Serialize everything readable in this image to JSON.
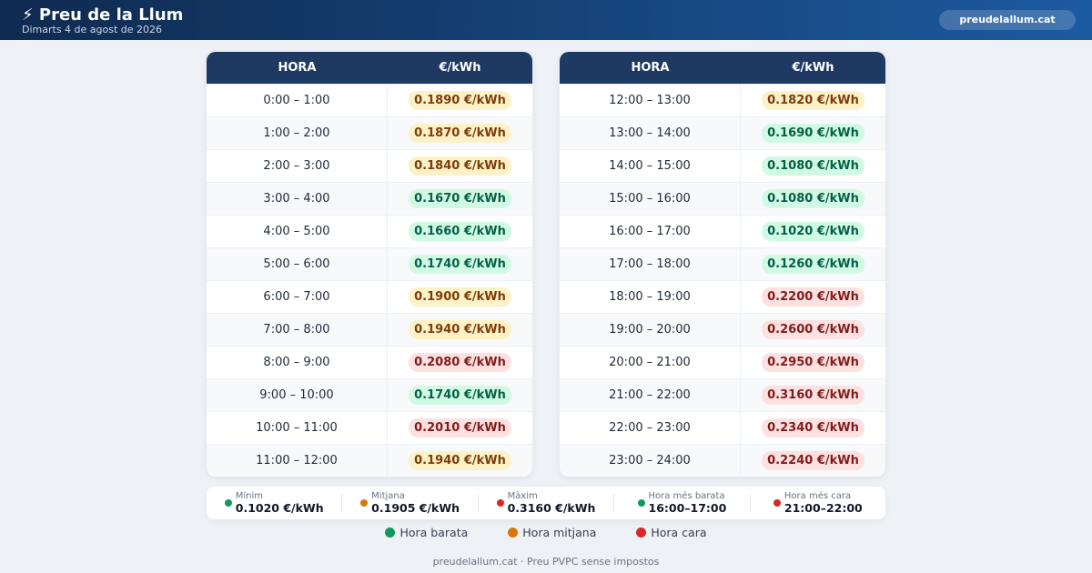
{
  "header": {
    "title": "⚡ Preu de la Llum",
    "subtitle": "Dimarts 4 de agost de 2026",
    "link": "preudelallum.cat"
  },
  "tones": {
    "cheap": {
      "text": "#065f46",
      "bg": "#d1fae5",
      "dot": "#0f9960"
    },
    "mid": {
      "text": "#7c3d0b",
      "bg": "#fdf1c7",
      "dot": "#d97706"
    },
    "high": {
      "text": "#7f1d1d",
      "bg": "#fde0e0",
      "dot": "#dc2626"
    }
  },
  "tables": [
    {
      "columns": [
        "HORA",
        "€/kWh"
      ],
      "rows": [
        {
          "hour": "0:00 – 1:00",
          "price": "0.1890 €/kWh",
          "tone": "mid"
        },
        {
          "hour": "1:00 – 2:00",
          "price": "0.1870 €/kWh",
          "tone": "mid"
        },
        {
          "hour": "2:00 – 3:00",
          "price": "0.1840 €/kWh",
          "tone": "mid"
        },
        {
          "hour": "3:00 – 4:00",
          "price": "0.1670 €/kWh",
          "tone": "cheap"
        },
        {
          "hour": "4:00 – 5:00",
          "price": "0.1660 €/kWh",
          "tone": "cheap"
        },
        {
          "hour": "5:00 – 6:00",
          "price": "0.1740 €/kWh",
          "tone": "cheap"
        },
        {
          "hour": "6:00 – 7:00",
          "price": "0.1900 €/kWh",
          "tone": "mid"
        },
        {
          "hour": "7:00 – 8:00",
          "price": "0.1940 €/kWh",
          "tone": "mid"
        },
        {
          "hour": "8:00 – 9:00",
          "price": "0.2080 €/kWh",
          "tone": "high"
        },
        {
          "hour": "9:00 – 10:00",
          "price": "0.1740 €/kWh",
          "tone": "cheap"
        },
        {
          "hour": "10:00 – 11:00",
          "price": "0.2010 €/kWh",
          "tone": "high"
        },
        {
          "hour": "11:00 – 12:00",
          "price": "0.1940 €/kWh",
          "tone": "mid"
        }
      ]
    },
    {
      "columns": [
        "HORA",
        "€/kWh"
      ],
      "rows": [
        {
          "hour": "12:00 – 13:00",
          "price": "0.1820 €/kWh",
          "tone": "mid"
        },
        {
          "hour": "13:00 – 14:00",
          "price": "0.1690 €/kWh",
          "tone": "cheap"
        },
        {
          "hour": "14:00 – 15:00",
          "price": "0.1080 €/kWh",
          "tone": "cheap"
        },
        {
          "hour": "15:00 – 16:00",
          "price": "0.1080 €/kWh",
          "tone": "cheap"
        },
        {
          "hour": "16:00 – 17:00",
          "price": "0.1020 €/kWh",
          "tone": "cheap"
        },
        {
          "hour": "17:00 – 18:00",
          "price": "0.1260 €/kWh",
          "tone": "cheap"
        },
        {
          "hour": "18:00 – 19:00",
          "price": "0.2200 €/kWh",
          "tone": "high"
        },
        {
          "hour": "19:00 – 20:00",
          "price": "0.2600 €/kWh",
          "tone": "high"
        },
        {
          "hour": "20:00 – 21:00",
          "price": "0.2950 €/kWh",
          "tone": "high"
        },
        {
          "hour": "21:00 – 22:00",
          "price": "0.3160 €/kWh",
          "tone": "high"
        },
        {
          "hour": "22:00 – 23:00",
          "price": "0.2340 €/kWh",
          "tone": "high"
        },
        {
          "hour": "23:00 – 24:00",
          "price": "0.2240 €/kWh",
          "tone": "high"
        }
      ]
    }
  ],
  "stats": [
    {
      "label": "Mínim",
      "value": "0.1020 €/kWh",
      "tone": "cheap"
    },
    {
      "label": "Mitjana",
      "value": "0.1905 €/kWh",
      "tone": "mid"
    },
    {
      "label": "Màxim",
      "value": "0.3160 €/kWh",
      "tone": "high"
    },
    {
      "label": "Hora més barata",
      "value": "16:00–17:00",
      "tone": "cheap"
    },
    {
      "label": "Hora més cara",
      "value": "21:00–22:00",
      "tone": "high"
    }
  ],
  "legend": [
    {
      "label": "Hora barata",
      "tone": "cheap"
    },
    {
      "label": "Hora mitjana",
      "tone": "mid"
    },
    {
      "label": "Hora cara",
      "tone": "high"
    }
  ],
  "footer": "preudelallum.cat · Preu PVPC sense impostos"
}
